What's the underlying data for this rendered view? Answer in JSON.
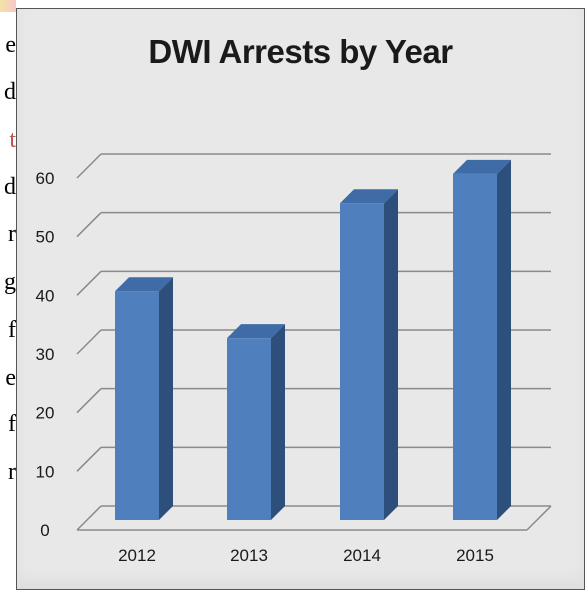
{
  "background_text_fragments": [
    "e",
    "d",
    "t",
    "d",
    "r",
    "g",
    "f",
    "e",
    "f",
    "r"
  ],
  "colors": {
    "bar_front": "#4f80bd",
    "bar_top": "#3f6ca6",
    "bar_side": "#2d4f7c",
    "panel_background": "#e8e8e8",
    "gridline": "#8a8a8a",
    "text": "#1a1a1a"
  },
  "chart_data": {
    "type": "bar",
    "title": "DWI Arrests by Year",
    "xlabel": "",
    "ylabel": "",
    "categories": [
      "2012",
      "2013",
      "2014",
      "2015"
    ],
    "values": [
      39,
      31,
      54,
      59
    ],
    "ylim": [
      0,
      60
    ],
    "yticks": [
      "0",
      "10",
      "20",
      "30",
      "40",
      "50",
      "60"
    ],
    "grid": true,
    "legend": "none",
    "style": "3d-column"
  }
}
